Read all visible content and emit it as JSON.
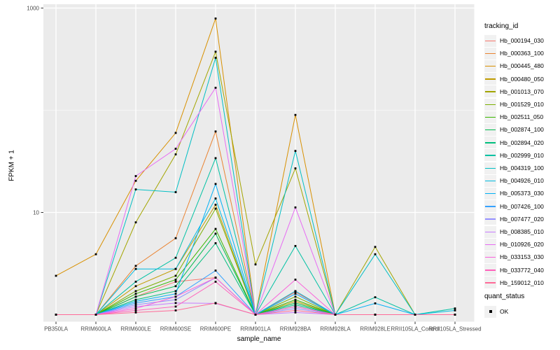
{
  "chart_data": {
    "type": "line",
    "title": "",
    "xlabel": "sample_name",
    "ylabel": "FPKM + 1",
    "y_scale": "log10",
    "ylim": [
      1,
      1000
    ],
    "y_ticks": [
      {
        "value": 1000,
        "label": "1000"
      },
      {
        "value": 10,
        "label": "10"
      }
    ],
    "y_minor": [
      100
    ],
    "grid": true,
    "panel_bg": "#EBEBEB",
    "grid_color": "#FFFFFF",
    "point_color": "#000000",
    "point_shape": "square",
    "legend_position": "right",
    "categories": [
      "PB350LA",
      "RRIM600LA",
      "RRIM600LE",
      "RRIM600SE",
      "RRIM600PE",
      "RRIM901LA",
      "RRIM928BA",
      "RRIM928LA",
      "RRIM928LE",
      "RRII105LA_Control",
      "RRII105LA_Stressed"
    ],
    "series": [
      {
        "name": "Hb_000194_030",
        "color": "#F8766D",
        "values": [
          1,
          1,
          1.5,
          2.1,
          2.3,
          1,
          1.66,
          1,
          1,
          1,
          1
        ]
      },
      {
        "name": "Hb_000363_100",
        "color": "#EA8331",
        "values": [
          1,
          1,
          3.0,
          5.6,
          62,
          1,
          1.7,
          1,
          1,
          1,
          1
        ]
      },
      {
        "name": "Hb_000445_480",
        "color": "#D89000",
        "values": [
          2.4,
          3.9,
          20.4,
          60,
          790,
          1,
          90,
          1,
          1,
          1,
          1
        ]
      },
      {
        "name": "Hb_000480_050",
        "color": "#C09B00",
        "values": [
          1,
          1,
          1.9,
          2.8,
          11.9,
          1,
          1.35,
          1,
          1,
          1,
          1
        ]
      },
      {
        "name": "Hb_001013_070",
        "color": "#A3A500",
        "values": [
          1,
          1,
          8.0,
          37,
          374,
          3.1,
          27,
          1,
          4.6,
          1,
          1
        ]
      },
      {
        "name": "Hb_001529_010",
        "color": "#7CAE00",
        "values": [
          1,
          1,
          1.7,
          2.4,
          10.9,
          1,
          1.5,
          1,
          1,
          1,
          1
        ]
      },
      {
        "name": "Hb_002511_050",
        "color": "#39B600",
        "values": [
          1,
          1,
          1.6,
          2.2,
          6.9,
          1,
          1.4,
          1,
          1,
          1,
          1
        ]
      },
      {
        "name": "Hb_002874_100",
        "color": "#00BB4E",
        "values": [
          1,
          1,
          1.5,
          1.9,
          6.2,
          1,
          1.3,
          1,
          1,
          1,
          1
        ]
      },
      {
        "name": "Hb_002894_020",
        "color": "#00BF7D",
        "values": [
          1,
          1,
          1.4,
          1.7,
          5.0,
          1,
          1.25,
          1,
          1,
          1,
          1
        ]
      },
      {
        "name": "Hb_002999_010",
        "color": "#00C1A3",
        "values": [
          1,
          1,
          2.1,
          3.6,
          34,
          1,
          4.7,
          1,
          1.48,
          1,
          1.15
        ]
      },
      {
        "name": "Hb_004319_100",
        "color": "#00BFC4",
        "values": [
          1,
          1,
          16.8,
          15.8,
          326,
          1,
          40,
          1,
          3.9,
          1,
          1
        ]
      },
      {
        "name": "Hb_004926_010",
        "color": "#00BAE0",
        "values": [
          1,
          1,
          2.8,
          2.8,
          13.7,
          1,
          1.7,
          1,
          1,
          1,
          1.1
        ]
      },
      {
        "name": "Hb_005373_030",
        "color": "#00B0F6",
        "values": [
          1,
          1,
          1.35,
          1.6,
          19,
          1,
          1.6,
          1,
          1.29,
          1,
          1
        ]
      },
      {
        "name": "Hb_007426_100",
        "color": "#35A2FF",
        "values": [
          1,
          1,
          1.3,
          1.5,
          2.7,
          1,
          1.2,
          1,
          1,
          1,
          1
        ]
      },
      {
        "name": "Hb_007477_020",
        "color": "#9590FF",
        "values": [
          1,
          1,
          1.25,
          1.4,
          2.3,
          1,
          1.15,
          1,
          1,
          1,
          1
        ]
      },
      {
        "name": "Hb_008385_010",
        "color": "#C77CFF",
        "values": [
          1,
          1,
          1.2,
          1.3,
          1.29,
          1,
          1.05,
          1,
          1,
          1,
          1
        ]
      },
      {
        "name": "Hb_010926_020",
        "color": "#E76BF3",
        "values": [
          1,
          1,
          22.7,
          42,
          166,
          1,
          11.2,
          1,
          1,
          1,
          1
        ]
      },
      {
        "name": "Hb_033153_030",
        "color": "#FA62DB",
        "values": [
          1,
          1,
          1.15,
          1.5,
          2.3,
          1,
          2.2,
          1,
          1,
          1,
          1
        ]
      },
      {
        "name": "Hb_033772_040",
        "color": "#FF62BC",
        "values": [
          1,
          1,
          1.1,
          1.2,
          2.1,
          1,
          1.2,
          1,
          1,
          1,
          1
        ]
      },
      {
        "name": "Hb_159012_010",
        "color": "#FF6A98",
        "values": [
          1,
          1,
          1.05,
          1.1,
          1.3,
          1,
          1.1,
          1,
          1,
          1,
          1
        ]
      }
    ],
    "legend": {
      "title": "tracking_id"
    },
    "quant_status": {
      "title": "quant_status",
      "items": [
        {
          "label": "OK",
          "marker": "black-square"
        }
      ]
    }
  }
}
